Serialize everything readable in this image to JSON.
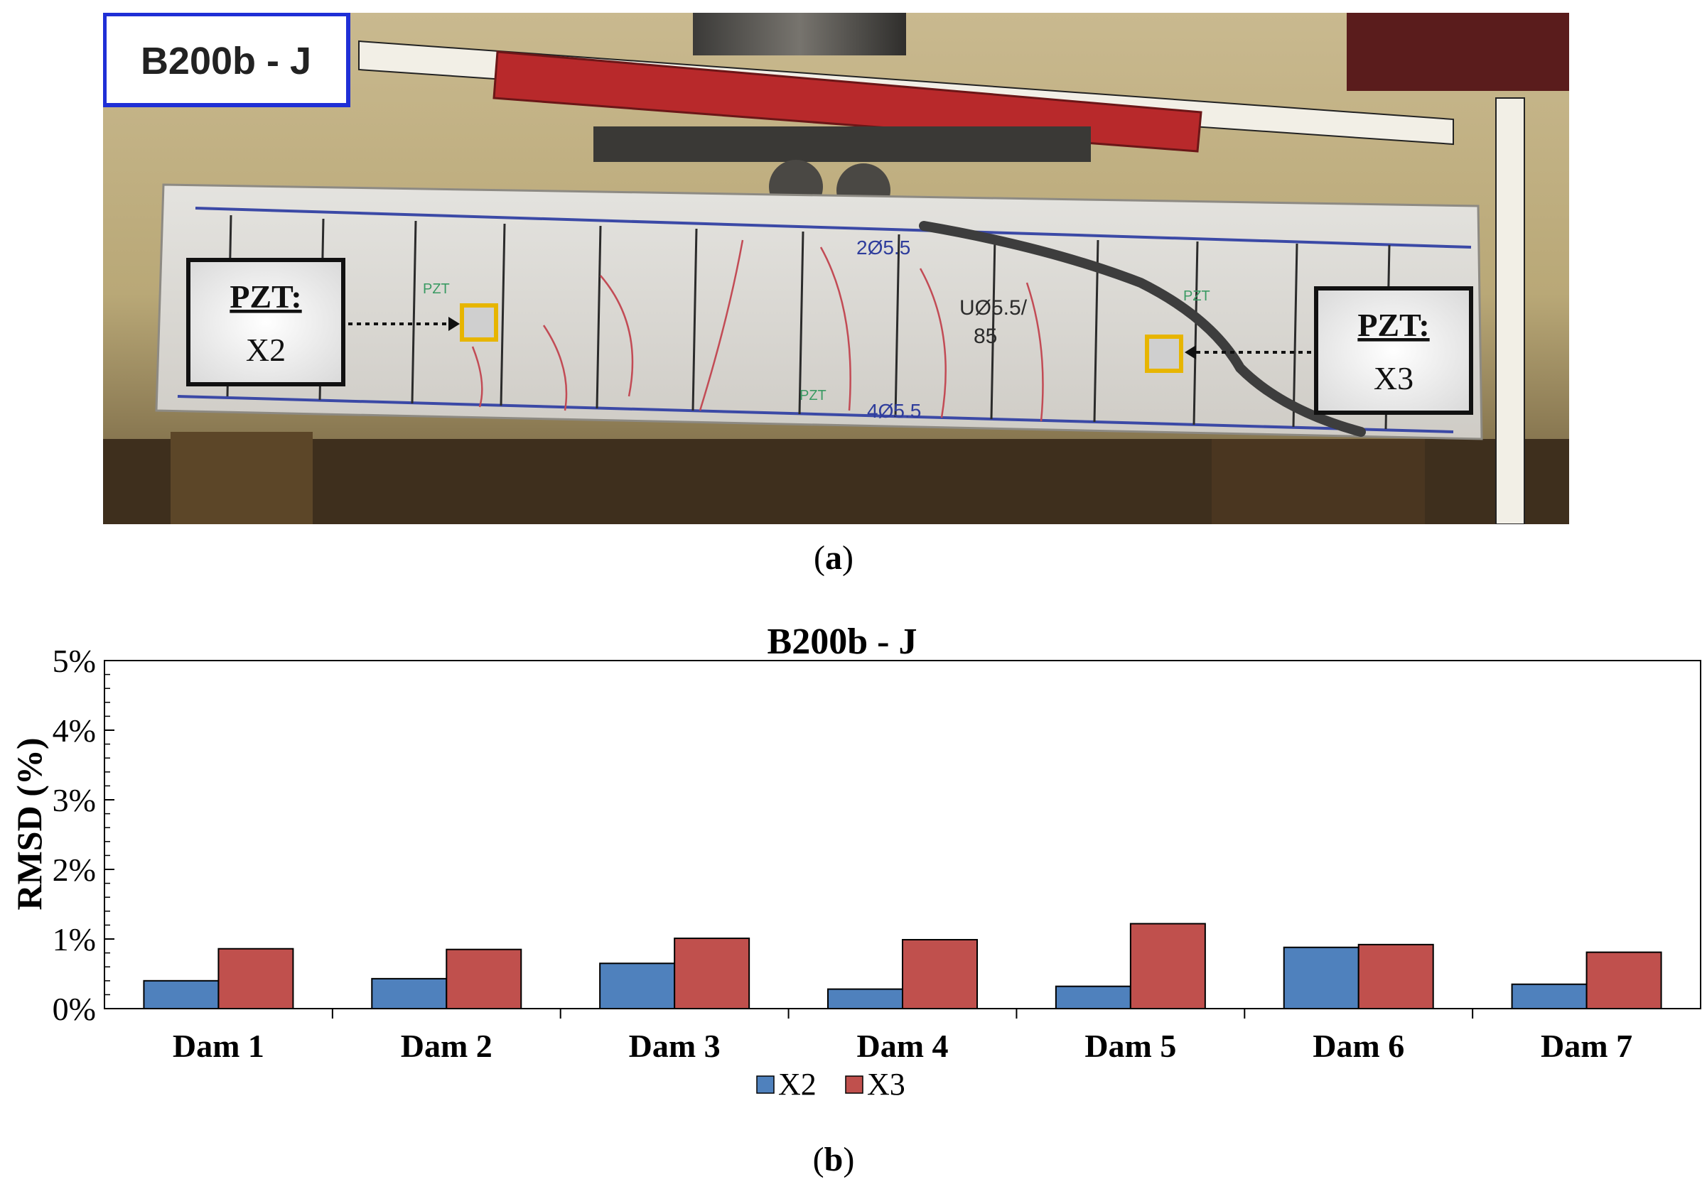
{
  "photo": {
    "specimen_label": "B200b - J",
    "callout_left": {
      "heading": "PZT:",
      "sensor": "X2"
    },
    "callout_right": {
      "heading": "PZT:",
      "sensor": "X3"
    },
    "beam_marks": [
      "2Ø5.5",
      "UØ5.5/",
      "85",
      "4Ø5.5",
      "PZT",
      "PZT",
      "PZT"
    ]
  },
  "captions": {
    "a": "a",
    "b": "b"
  },
  "colors": {
    "x2": "#4F81BD",
    "x3": "#C0504D",
    "label_border": "#1F2FD6"
  },
  "chart_data": {
    "type": "bar",
    "title": "B200b - J",
    "ylabel": "RMSD (%)",
    "xlabel": "",
    "categories": [
      "Dam 1",
      "Dam 2",
      "Dam 3",
      "Dam 4",
      "Dam 5",
      "Dam 6",
      "Dam 7"
    ],
    "series": [
      {
        "name": "X2",
        "color": "#4F81BD",
        "values": [
          0.4,
          0.43,
          0.65,
          0.28,
          0.32,
          0.88,
          0.35
        ]
      },
      {
        "name": "X3",
        "color": "#C0504D",
        "values": [
          0.86,
          0.85,
          1.01,
          0.99,
          1.22,
          0.92,
          0.81
        ]
      }
    ],
    "ylim": [
      0,
      5
    ],
    "yticks": [
      0,
      1,
      2,
      3,
      4,
      5
    ],
    "ytick_labels": [
      "0%",
      "1%",
      "2%",
      "3%",
      "4%",
      "5%"
    ],
    "grid": false,
    "legend_position": "bottom-center"
  }
}
